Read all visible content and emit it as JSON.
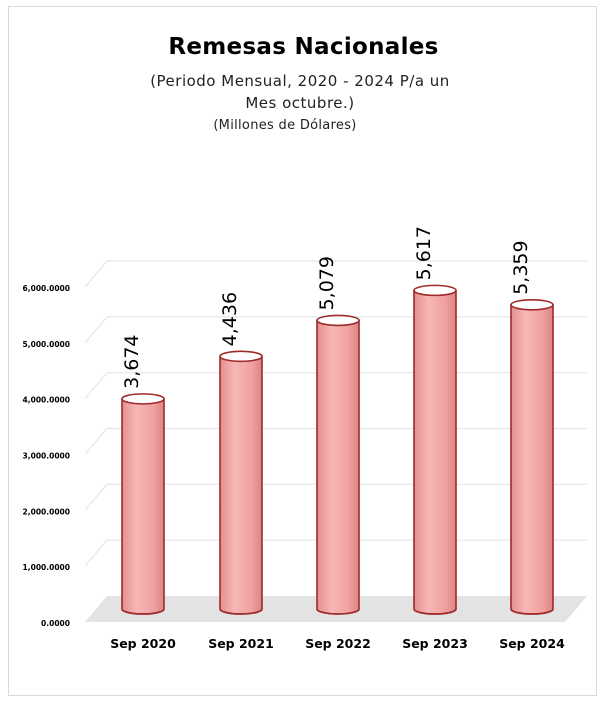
{
  "chart_data": {
    "type": "bar",
    "title": "Remesas Nacionales",
    "subtitle": "(Periodo Mensual, 2020 - 2024 P/a un Mes octubre.)",
    "unit_label": "(Millones de Dólares)",
    "categories": [
      "Sep 2020",
      "Sep 2021",
      "Sep 2022",
      "Sep 2023",
      "Sep 2024"
    ],
    "values": [
      3674,
      4436,
      5079,
      5617,
      5359
    ],
    "data_labels": [
      "3,674",
      "4,436",
      "5,079",
      "5,617",
      "5,359"
    ],
    "y_ticks": [
      0,
      1000,
      2000,
      3000,
      4000,
      5000,
      6000
    ],
    "y_tick_labels": [
      "0.0000",
      "1,000.0000",
      "2,000.0000",
      "3,000.0000",
      "4,000.0000",
      "5,000.0000",
      "6,000.0000"
    ],
    "ylim": [
      0,
      6000
    ],
    "grid": true,
    "bar_style": "3d-cylinder",
    "colors": {
      "fill": "#f2a3a3",
      "fill_dark": "#d98080",
      "stroke": "#9e2a2a",
      "grid": "#e6e6e6",
      "floor": "#e3e3e3"
    }
  }
}
